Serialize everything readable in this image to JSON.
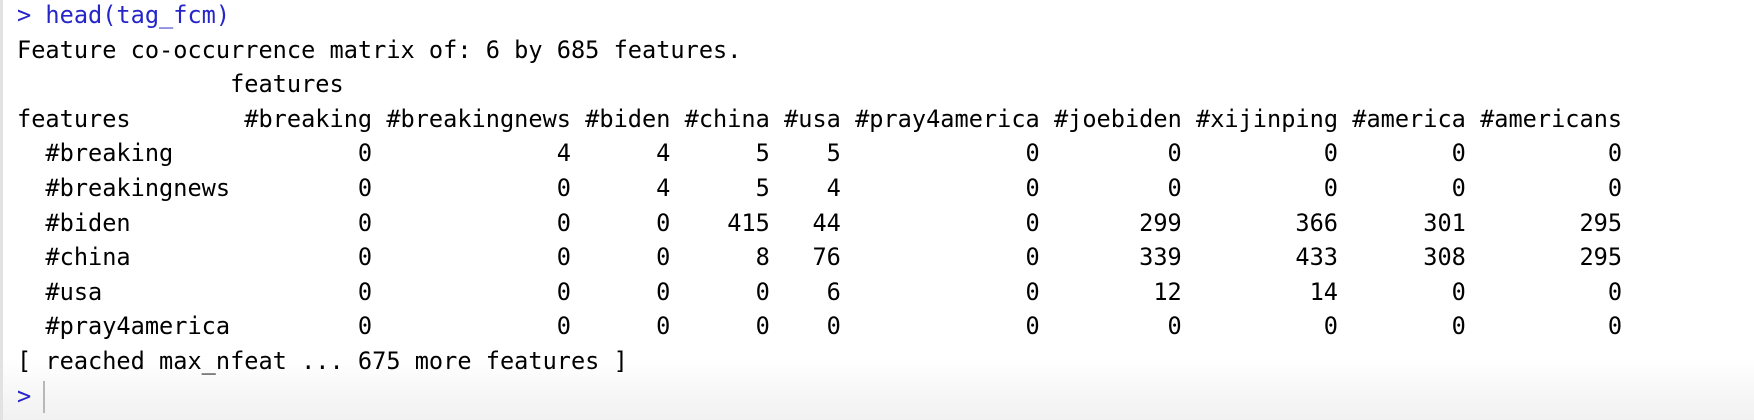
{
  "console": {
    "command_prompt": ">",
    "command": "head(tag_fcm)",
    "summary": "Feature co-occurrence matrix of: 6 by 685 features.",
    "column_title": "features",
    "row_title": "features",
    "columns": [
      "#breaking",
      "#breakingnews",
      "#biden",
      "#china",
      "#usa",
      "#pray4america",
      "#joebiden",
      "#xijinping",
      "#america",
      "#americans"
    ],
    "rows": [
      {
        "name": "#breaking",
        "values": [
          0,
          4,
          4,
          5,
          5,
          0,
          0,
          0,
          0,
          0
        ]
      },
      {
        "name": "#breakingnews",
        "values": [
          0,
          0,
          4,
          5,
          4,
          0,
          0,
          0,
          0,
          0
        ]
      },
      {
        "name": "#biden",
        "values": [
          0,
          0,
          0,
          415,
          44,
          0,
          299,
          366,
          301,
          295
        ]
      },
      {
        "name": "#china",
        "values": [
          0,
          0,
          0,
          8,
          76,
          0,
          339,
          433,
          308,
          295
        ]
      },
      {
        "name": "#usa",
        "values": [
          0,
          0,
          0,
          0,
          6,
          0,
          12,
          14,
          0,
          0
        ]
      },
      {
        "name": "#pray4america",
        "values": [
          0,
          0,
          0,
          0,
          0,
          0,
          0,
          0,
          0,
          0
        ]
      }
    ],
    "footer": "[ reached max_nfeat ... 675 more features ]",
    "input_prompt": ">"
  }
}
